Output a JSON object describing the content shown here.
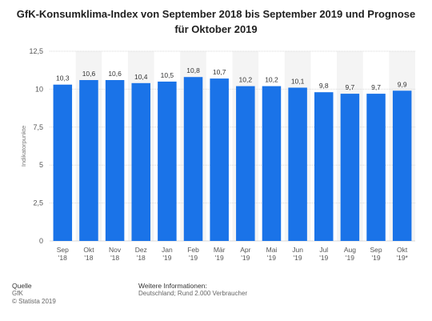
{
  "chart_data": {
    "type": "bar",
    "title": "GfK-Konsumklima-Index von September 2018 bis September 2019 und Prognose für Oktober 2019",
    "ylabel": "Indikatorpunkte",
    "xlabel": "",
    "ylim": [
      0,
      12.5
    ],
    "yticks": [
      "0",
      "2,5",
      "5",
      "7,5",
      "10",
      "12,5"
    ],
    "ytick_values": [
      0,
      2.5,
      5,
      7.5,
      10,
      12.5
    ],
    "categories": [
      [
        "Sep",
        "'18"
      ],
      [
        "Okt",
        "'18"
      ],
      [
        "Nov",
        "'18"
      ],
      [
        "Dez",
        "'18"
      ],
      [
        "Jan",
        "'19"
      ],
      [
        "Feb",
        "'19"
      ],
      [
        "Mär",
        "'19"
      ],
      [
        "Apr",
        "'19"
      ],
      [
        "Mai",
        "'19"
      ],
      [
        "Jun",
        "'19"
      ],
      [
        "Jul",
        "'19"
      ],
      [
        "Aug",
        "'19"
      ],
      [
        "Sep",
        "'19"
      ],
      [
        "Okt",
        "'19*"
      ]
    ],
    "values": [
      10.3,
      10.6,
      10.6,
      10.4,
      10.5,
      10.8,
      10.7,
      10.2,
      10.2,
      10.1,
      9.8,
      9.7,
      9.7,
      9.9
    ],
    "value_labels": [
      "10,3",
      "10,6",
      "10,6",
      "10,4",
      "10,5",
      "10,8",
      "10,7",
      "10,2",
      "10,2",
      "10,1",
      "9,8",
      "9,7",
      "9,7",
      "9,9"
    ],
    "bar_color": "#1a73e8",
    "grid": true
  },
  "footer": {
    "source_heading": "Quelle",
    "source": "GfK",
    "copyright": "© Statista 2019",
    "info_heading": "Weitere Informationen:",
    "info": "Deutschland; Rund 2.000 Verbraucher"
  }
}
